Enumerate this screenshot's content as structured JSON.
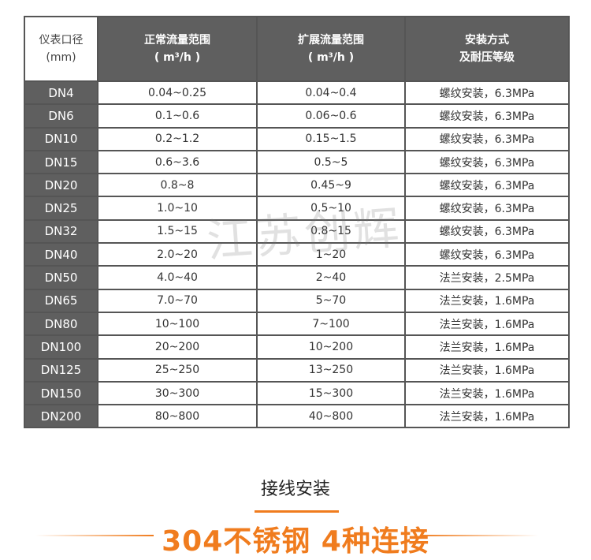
{
  "table": {
    "headers": [
      [
        "仪表口径",
        "(mm)"
      ],
      [
        "正常流量范围",
        "( m³/h )"
      ],
      [
        "扩展流量范围",
        "( m³/h )"
      ],
      [
        "安装方式",
        "及耐压等级"
      ]
    ],
    "rows": [
      [
        "DN4",
        "0.04~0.25",
        "0.04~0.4",
        "螺纹安装，6.3MPa"
      ],
      [
        "DN6",
        "0.1~0.6",
        "0.06~0.6",
        "螺纹安装，6.3MPa"
      ],
      [
        "DN10",
        "0.2~1.2",
        "0.15~1.5",
        "螺纹安装，6.3MPa"
      ],
      [
        "DN15",
        "0.6~3.6",
        "0.5~5",
        "螺纹安装，6.3MPa"
      ],
      [
        "DN20",
        "0.8~8",
        "0.45~9",
        "螺纹安装，6.3MPa"
      ],
      [
        "DN25",
        "1.0~10",
        "0.5~10",
        "螺纹安装，6.3MPa"
      ],
      [
        "DN32",
        "1.5~15",
        "0.8~15",
        "螺纹安装，6.3MPa"
      ],
      [
        "DN40",
        "2.0~20",
        "1~20",
        "螺纹安装，6.3MPa"
      ],
      [
        "DN50",
        "4.0~40",
        "2~40",
        "法兰安装，2.5MPa"
      ],
      [
        "DN65",
        "7.0~70",
        "5~70",
        "法兰安装，1.6MPa"
      ],
      [
        "DN80",
        "10~100",
        "7~100",
        "法兰安装，1.6MPa"
      ],
      [
        "DN100",
        "20~200",
        "10~200",
        "法兰安装，1.6MPa"
      ],
      [
        "DN125",
        "25~250",
        "13~250",
        "法兰安装，1.6MPa"
      ],
      [
        "DN150",
        "30~300",
        "15~300",
        "法兰安装，1.6MPa"
      ],
      [
        "DN200",
        "80~800",
        "40~800",
        "法兰安装，1.6MPa"
      ]
    ]
  },
  "watermark": "江苏创辉",
  "section": {
    "subtitle": "接线安装",
    "title": "304不锈钢 4种连接",
    "accent": "#f07c1e"
  }
}
